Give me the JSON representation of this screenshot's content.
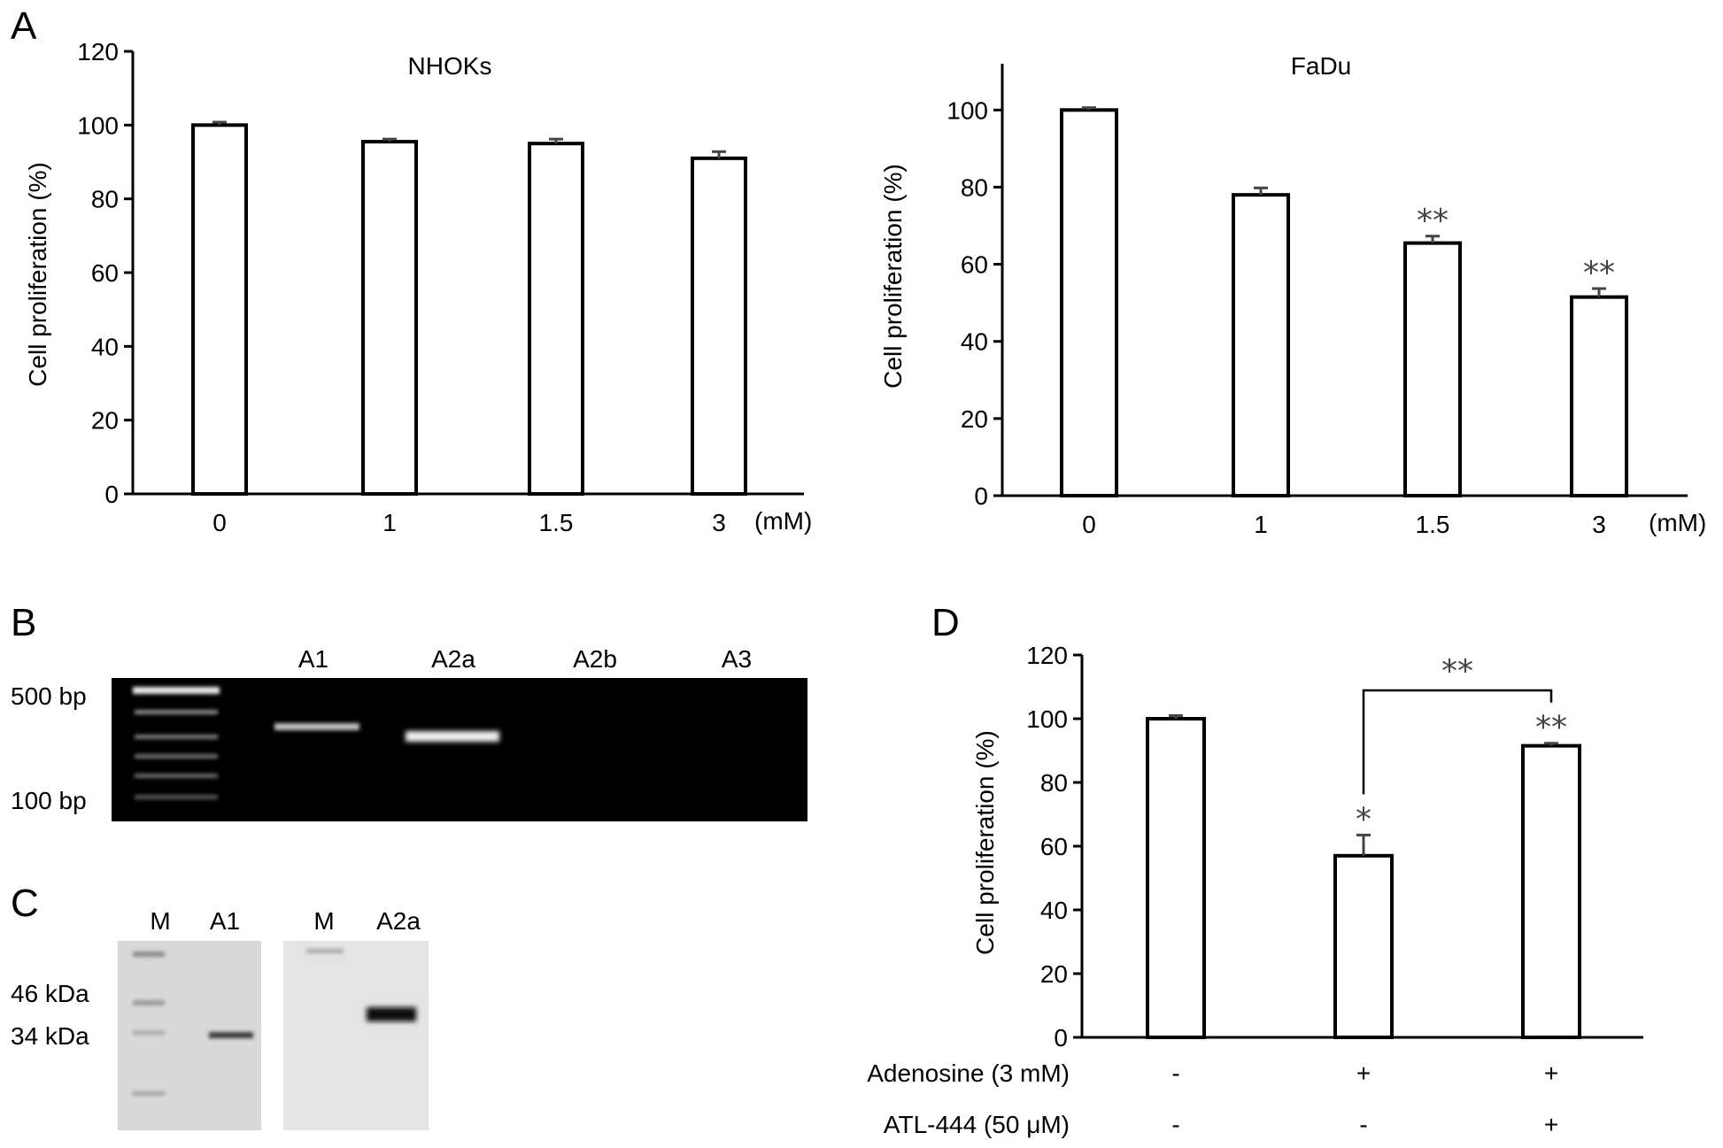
{
  "panels": {
    "A": "A",
    "B": "B",
    "C": "C",
    "D": "D"
  },
  "chart_data": [
    {
      "id": "A-left",
      "type": "bar",
      "title": "NHOKs",
      "ylabel": "Cell proliferation (%)",
      "xunit": "(mM)",
      "categories": [
        "0",
        "1",
        "1.5",
        "3"
      ],
      "values": [
        100,
        95.5,
        95,
        91
      ],
      "errors": [
        0.8,
        0.7,
        1.2,
        1.8
      ],
      "annotations": [
        "",
        "",
        "",
        ""
      ],
      "yticks": [
        0,
        20,
        40,
        60,
        80,
        100,
        120
      ],
      "ylim": [
        0,
        120
      ]
    },
    {
      "id": "A-right",
      "type": "bar",
      "title": "FaDu",
      "ylabel": "Cell proliferation (%)",
      "xunit": "(mM)",
      "categories": [
        "0",
        "1",
        "1.5",
        "3"
      ],
      "values": [
        100,
        78,
        65.5,
        51.5
      ],
      "errors": [
        0.6,
        1.8,
        1.8,
        2.2
      ],
      "annotations": [
        "",
        "",
        "**",
        "**"
      ],
      "yticks": [
        0,
        20,
        40,
        60,
        80,
        100
      ],
      "ylim": [
        0,
        112
      ]
    },
    {
      "id": "D",
      "type": "bar",
      "ylabel": "Cell proliferation (%)",
      "categories": [
        "",
        "",
        ""
      ],
      "row_labels": [
        "Adenosine (3 mM)",
        "ATL-444 (50 μM)"
      ],
      "row_values": [
        [
          "-",
          "+",
          "+"
        ],
        [
          "-",
          "-",
          "+"
        ]
      ],
      "values": [
        100,
        57,
        91.5
      ],
      "errors": [
        1,
        6.5,
        0.8
      ],
      "annotations": [
        "",
        "*",
        "**"
      ],
      "bracket": {
        "from": 1,
        "to": 2,
        "label": "**"
      },
      "yticks": [
        0,
        20,
        40,
        60,
        80,
        100,
        120
      ],
      "ylim": [
        0,
        120
      ]
    }
  ],
  "gel": {
    "lanes": [
      "A1",
      "A2a",
      "A2b",
      "A3"
    ],
    "markers": [
      "500 bp",
      "100 bp"
    ]
  },
  "western": {
    "blot1_lanes": [
      "M",
      "A1"
    ],
    "blot2_lanes": [
      "M",
      "A2a"
    ],
    "markers": [
      "46 kDa",
      "34 kDa"
    ]
  }
}
